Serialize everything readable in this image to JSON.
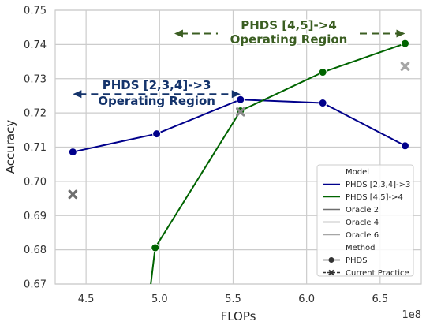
{
  "chart_data": {
    "type": "line",
    "xlabel": "FLOPs",
    "ylabel": "Accuracy",
    "x_offset_label": "1e8",
    "xlim": [
      4.29,
      6.78
    ],
    "ylim": [
      0.67,
      0.75
    ],
    "xticks": [
      "4.5",
      "5.0",
      "5.5",
      "6.0",
      "6.5"
    ],
    "yticks": [
      "0.67",
      "0.68",
      "0.69",
      "0.70",
      "0.71",
      "0.72",
      "0.73",
      "0.74",
      "0.75"
    ],
    "grid": true,
    "legend_placement": "lower-right",
    "colors": {
      "phds234": "#00008b",
      "phds45": "#006400",
      "current_practice": "#7a7a7a"
    },
    "series": [
      {
        "name": "PHDS [2,3,4]->3",
        "color": "#00008b",
        "marker": "circle",
        "x": [
          4.41,
          4.98,
          5.55,
          6.11,
          6.67
        ],
        "y": [
          0.7086,
          0.7139,
          0.7239,
          0.7229,
          0.7104
        ]
      },
      {
        "name": "PHDS [4,5]->4",
        "color": "#006400",
        "marker": "circle",
        "x": [
          4.94,
          4.97,
          5.55,
          6.11,
          6.67
        ],
        "y": [
          0.6699,
          0.6806,
          0.7206,
          0.7319,
          0.7403
        ]
      }
    ],
    "current_practice": [
      {
        "x": 4.41,
        "y": 0.6962,
        "color": "#6e6e6e"
      },
      {
        "x": 5.55,
        "y": 0.7203,
        "color": "#8a8a8a"
      },
      {
        "x": 6.67,
        "y": 0.7336,
        "color": "#a6a6a6"
      }
    ],
    "annotations": [
      {
        "text_lines": [
          "PHDS [2,3,4]->3",
          "Operating Region"
        ],
        "color": "#14336b",
        "x_from": 4.41,
        "x_to": 5.55,
        "y": 0.7255
      },
      {
        "text_lines": [
          "PHDS [4,5]->4",
          "Operating Region"
        ],
        "color": "#3b5e22",
        "x_from": 5.1,
        "x_to": 6.67,
        "y": 0.7432
      }
    ],
    "legend": {
      "model_title": "Model",
      "models": [
        {
          "label": "PHDS [2,3,4]->3",
          "color": "#00008b"
        },
        {
          "label": "PHDS [4,5]->4",
          "color": "#006400"
        },
        {
          "label": "Oracle 2",
          "color": "#6e6e6e"
        },
        {
          "label": "Oracle 4",
          "color": "#8a8a8a"
        },
        {
          "label": "Oracle 6",
          "color": "#a6a6a6"
        }
      ],
      "method_title": "Method",
      "methods": [
        {
          "label": "PHDS",
          "marker": "circle"
        },
        {
          "label": "Current Practice",
          "marker": "x"
        }
      ]
    }
  }
}
